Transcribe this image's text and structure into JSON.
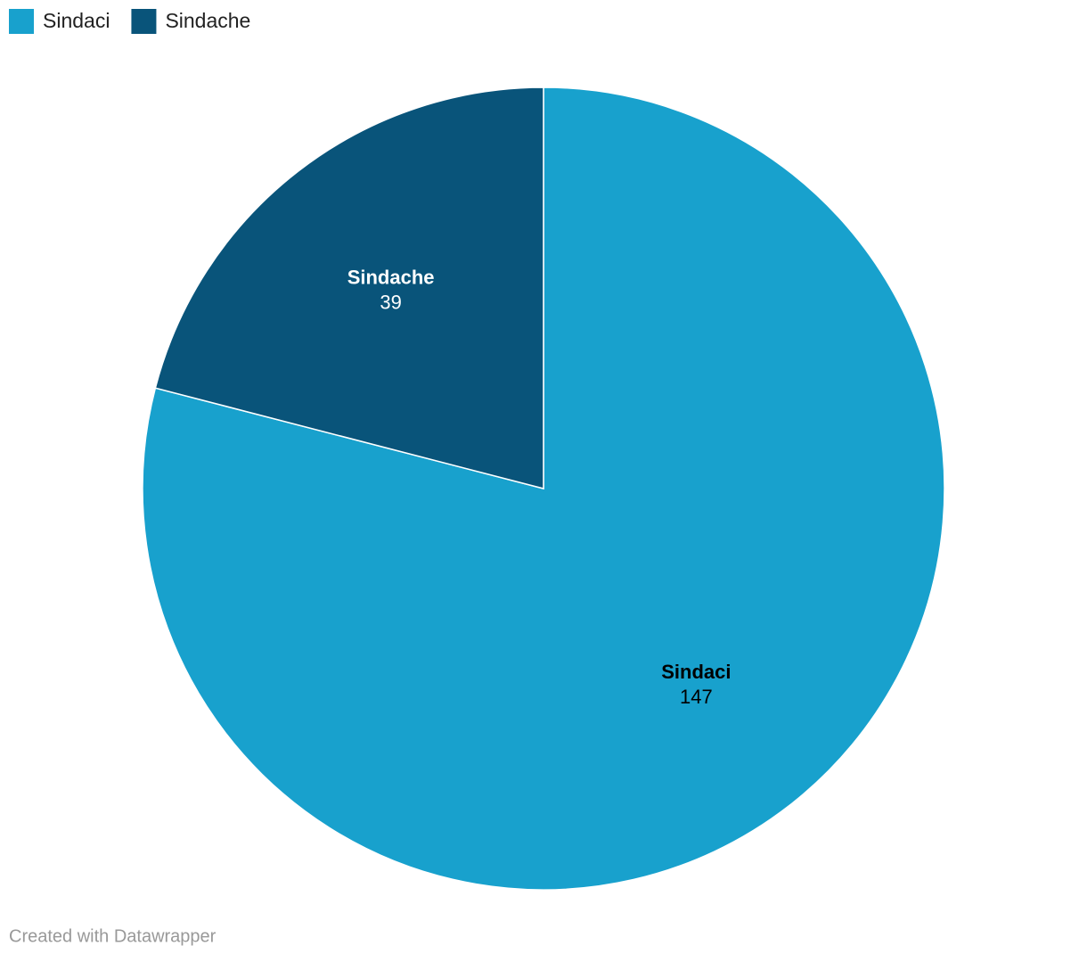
{
  "chart_data": {
    "type": "pie",
    "categories": [
      "Sindaci",
      "Sindache"
    ],
    "values": [
      147,
      39
    ],
    "colors": [
      "#18a1cd",
      "#09547a"
    ],
    "label_colors": [
      "#000000",
      "#ffffff"
    ],
    "legend": "top-left",
    "credit": "Created with Datawrapper"
  }
}
